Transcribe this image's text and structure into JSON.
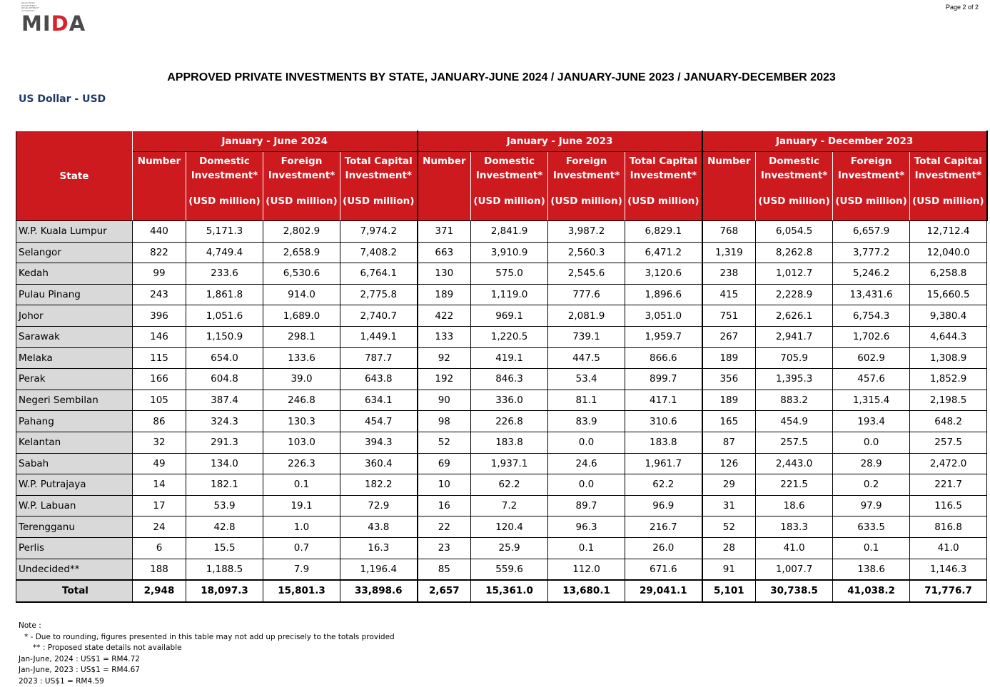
{
  "logo": {
    "text": "MIDA",
    "subtitle": "MALAYSIAN INVESTMENT DEVELOPMENT AUTHORITY"
  },
  "page_number": "Page 2 of 2",
  "title": "APPROVED PRIVATE INVESTMENTS BY STATE, JANUARY-JUNE 2024 / JANUARY-JUNE 2023 / JANUARY-DECEMBER 2023",
  "currency": "US Dollar - USD",
  "table": {
    "state_header": "State",
    "periods": [
      "January - June 2024",
      "January - June 2023",
      "January - December 2023"
    ],
    "columns": [
      {
        "label": "Number",
        "unit": ""
      },
      {
        "label": "Domestic Investment*",
        "unit": "(USD million)"
      },
      {
        "label": "Foreign Investment*",
        "unit": "(USD million)"
      },
      {
        "label": "Total Capital Investment*",
        "unit": "(USD million)"
      }
    ],
    "rows": [
      [
        "W.P. Kuala Lumpur",
        "440",
        "5,171.3",
        "2,802.9",
        "7,974.2",
        "371",
        "2,841.9",
        "3,987.2",
        "6,829.1",
        "768",
        "6,054.5",
        "6,657.9",
        "12,712.4"
      ],
      [
        "Selangor",
        "822",
        "4,749.4",
        "2,658.9",
        "7,408.2",
        "663",
        "3,910.9",
        "2,560.3",
        "6,471.2",
        "1,319",
        "8,262.8",
        "3,777.2",
        "12,040.0"
      ],
      [
        "Kedah",
        "99",
        "233.6",
        "6,530.6",
        "6,764.1",
        "130",
        "575.0",
        "2,545.6",
        "3,120.6",
        "238",
        "1,012.7",
        "5,246.2",
        "6,258.8"
      ],
      [
        "Pulau Pinang",
        "243",
        "1,861.8",
        "914.0",
        "2,775.8",
        "189",
        "1,119.0",
        "777.6",
        "1,896.6",
        "415",
        "2,228.9",
        "13,431.6",
        "15,660.5"
      ],
      [
        "Johor",
        "396",
        "1,051.6",
        "1,689.0",
        "2,740.7",
        "422",
        "969.1",
        "2,081.9",
        "3,051.0",
        "751",
        "2,626.1",
        "6,754.3",
        "9,380.4"
      ],
      [
        "Sarawak",
        "146",
        "1,150.9",
        "298.1",
        "1,449.1",
        "133",
        "1,220.5",
        "739.1",
        "1,959.7",
        "267",
        "2,941.7",
        "1,702.6",
        "4,644.3"
      ],
      [
        "Melaka",
        "115",
        "654.0",
        "133.6",
        "787.7",
        "92",
        "419.1",
        "447.5",
        "866.6",
        "189",
        "705.9",
        "602.9",
        "1,308.9"
      ],
      [
        "Perak",
        "166",
        "604.8",
        "39.0",
        "643.8",
        "192",
        "846.3",
        "53.4",
        "899.7",
        "356",
        "1,395.3",
        "457.6",
        "1,852.9"
      ],
      [
        "Negeri Sembilan",
        "105",
        "387.4",
        "246.8",
        "634.1",
        "90",
        "336.0",
        "81.1",
        "417.1",
        "189",
        "883.2",
        "1,315.4",
        "2,198.5"
      ],
      [
        "Pahang",
        "86",
        "324.3",
        "130.3",
        "454.7",
        "98",
        "226.8",
        "83.9",
        "310.6",
        "165",
        "454.9",
        "193.4",
        "648.2"
      ],
      [
        "Kelantan",
        "32",
        "291.3",
        "103.0",
        "394.3",
        "52",
        "183.8",
        "0.0",
        "183.8",
        "87",
        "257.5",
        "0.0",
        "257.5"
      ],
      [
        "Sabah",
        "49",
        "134.0",
        "226.3",
        "360.4",
        "69",
        "1,937.1",
        "24.6",
        "1,961.7",
        "126",
        "2,443.0",
        "28.9",
        "2,472.0"
      ],
      [
        "W.P. Putrajaya",
        "14",
        "182.1",
        "0.1",
        "182.2",
        "10",
        "62.2",
        "0.0",
        "62.2",
        "29",
        "221.5",
        "0.2",
        "221.7"
      ],
      [
        "W.P. Labuan",
        "17",
        "53.9",
        "19.1",
        "72.9",
        "16",
        "7.2",
        "89.7",
        "96.9",
        "31",
        "18.6",
        "97.9",
        "116.5"
      ],
      [
        "Terengganu",
        "24",
        "42.8",
        "1.0",
        "43.8",
        "22",
        "120.4",
        "96.3",
        "216.7",
        "52",
        "183.3",
        "633.5",
        "816.8"
      ],
      [
        "Perlis",
        "6",
        "15.5",
        "0.7",
        "16.3",
        "23",
        "25.9",
        "0.1",
        "26.0",
        "28",
        "41.0",
        "0.1",
        "41.0"
      ],
      [
        "Undecided**",
        "188",
        "1,188.5",
        "7.9",
        "1,196.4",
        "85",
        "559.6",
        "112.0",
        "671.6",
        "91",
        "1,007.7",
        "138.6",
        "1,146.3"
      ]
    ],
    "total": [
      "Total",
      "2,948",
      "18,097.3",
      "15,801.3",
      "33,898.6",
      "2,657",
      "15,361.0",
      "13,680.1",
      "29,041.1",
      "5,101",
      "30,738.5",
      "41,038.2",
      "71,776.7"
    ]
  },
  "notes": [
    "Note :",
    "* - Due to rounding, figures presented in this table may not add up precisely to the totals provided",
    "** : Proposed state details not available",
    "Jan-June, 2024 : US$1 = RM4.72",
    "Jan-June, 2023 : US$1 = RM4.67",
    "2023 : US$1 = RM4.59"
  ]
}
